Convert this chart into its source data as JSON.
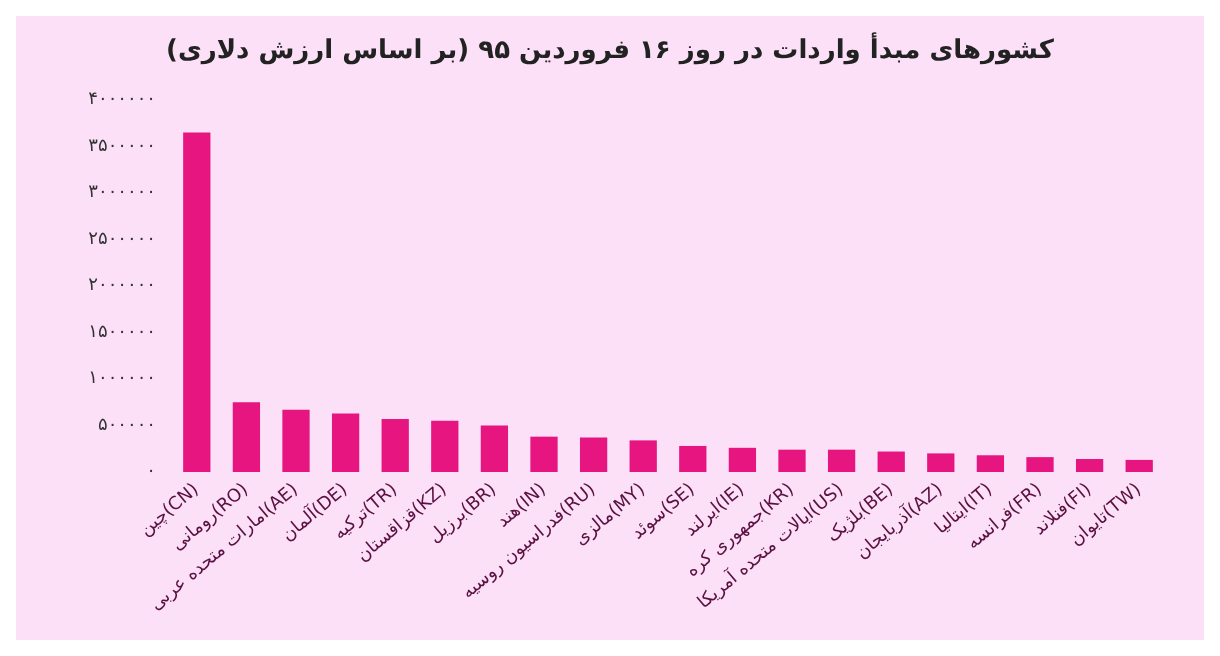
{
  "chart_data": {
    "type": "bar",
    "title": "کشورهای مبدأ واردات در روز ۱۶ فروردین ۹۵ (بر اساس ارزش دلاری)",
    "categories": [
      "چین(CN)",
      "رومانی(RO)",
      "امارات متحده عربی(AE)",
      "آلمان(DE)",
      "ترکیه(TR)",
      "قزاقستان(KZ)",
      "برزیل(BR)",
      "هند(IN)",
      "فدراسیون روسیه(RU)",
      "مالزی(MY)",
      "سوئد(SE)",
      "ایرلند(IE)",
      "جمهوری کره(KR)",
      "ایالات متحده آمریکا(US)",
      "بلژیک(BE)",
      "آذربایجان(AZ)",
      "ایتالیا(IT)",
      "فرانسه(FR)",
      "فنلاند(FI)",
      "تایوان(TW)"
    ],
    "values": [
      3650000,
      750000,
      670000,
      630000,
      570000,
      550000,
      500000,
      380000,
      370000,
      340000,
      280000,
      260000,
      240000,
      240000,
      220000,
      200000,
      180000,
      160000,
      140000,
      130000
    ],
    "color": "#e6157f",
    "ylim": [
      0,
      4000000
    ],
    "yticks": [
      {
        "value": 0,
        "label": "۰"
      },
      {
        "value": 500000,
        "label": "۵۰۰۰۰۰"
      },
      {
        "value": 1000000,
        "label": "۱۰۰۰۰۰۰"
      },
      {
        "value": 1500000,
        "label": "۱۵۰۰۰۰۰"
      },
      {
        "value": 2000000,
        "label": "۲۰۰۰۰۰۰"
      },
      {
        "value": 2500000,
        "label": "۲۵۰۰۰۰۰"
      },
      {
        "value": 3000000,
        "label": "۳۰۰۰۰۰۰"
      },
      {
        "value": 3500000,
        "label": "۳۵۰۰۰۰۰"
      },
      {
        "value": 4000000,
        "label": "۴۰۰۰۰۰۰"
      }
    ],
    "grid": false
  }
}
